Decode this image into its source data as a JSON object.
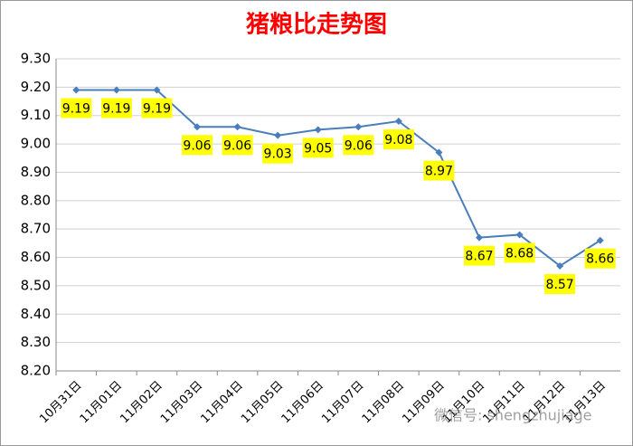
{
  "chart_data": {
    "type": "line",
    "title": "猪粮比走势图",
    "categories": [
      "10月31日",
      "11月01日",
      "11月02日",
      "11月03日",
      "11月04日",
      "11月05日",
      "11月06日",
      "11月07日",
      "11月08日",
      "11月09日",
      "11月10日",
      "11月11日",
      "11月12日",
      "11月13日"
    ],
    "values": [
      9.19,
      9.19,
      9.19,
      9.06,
      9.06,
      9.03,
      9.05,
      9.06,
      9.08,
      8.97,
      8.67,
      8.68,
      8.57,
      8.66
    ],
    "color": "#4a7ebb",
    "label_color": "#ffff00",
    "ylim": [
      8.2,
      9.3
    ],
    "yticks": [
      {
        "value": 8.2,
        "label": "8.20"
      },
      {
        "value": 8.3,
        "label": "8.30"
      },
      {
        "value": 8.4,
        "label": "8.40"
      },
      {
        "value": 8.5,
        "label": "8.50"
      },
      {
        "value": 8.6,
        "label": "8.60"
      },
      {
        "value": 8.7,
        "label": "8.70"
      },
      {
        "value": 8.8,
        "label": "8.80"
      },
      {
        "value": 8.9,
        "label": "8.90"
      },
      {
        "value": 9.0,
        "label": "9.00"
      },
      {
        "value": 9.1,
        "label": "9.10"
      },
      {
        "value": 9.2,
        "label": "9.20"
      },
      {
        "value": 9.3,
        "label": "9.30"
      }
    ],
    "grid": true,
    "watermark": "微信号: shengzhujiage"
  }
}
